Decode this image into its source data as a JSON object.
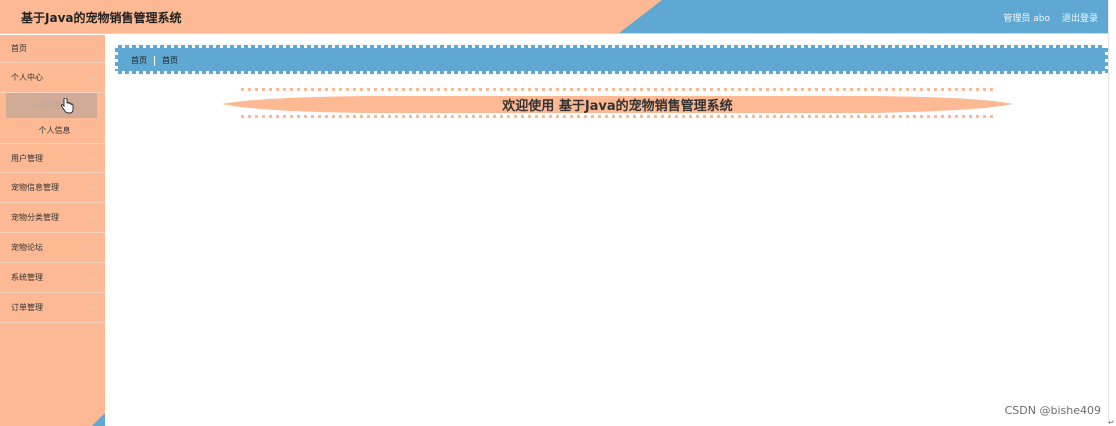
{
  "app": {
    "title": "基于Java的宠物销售管理系统"
  },
  "header": {
    "user_label": "管理员 abo",
    "logout_label": "退出登录",
    "colors": {
      "peach": "#fdb993",
      "blue": "#5ea8d3"
    }
  },
  "sidebar": {
    "items": [
      {
        "label": "首页",
        "expandable": false
      },
      {
        "label": "个人中心",
        "expandable": true,
        "children": [
          {
            "label": "修改密码",
            "state": "hovered"
          },
          {
            "label": "个人信息"
          }
        ]
      },
      {
        "label": "用户管理",
        "expandable": true
      },
      {
        "label": "宠物信息管理",
        "expandable": true
      },
      {
        "label": "宠物分类管理",
        "expandable": true
      },
      {
        "label": "宠物论坛",
        "expandable": true
      },
      {
        "label": "系统管理",
        "expandable": true
      },
      {
        "label": "订单管理",
        "expandable": true
      }
    ]
  },
  "breadcrumb": {
    "items": [
      "首页",
      "首页"
    ]
  },
  "main": {
    "welcome": "欢迎使用 基于Java的宠物销售管理系统"
  },
  "watermark": "CSDN @bishe409",
  "edge_mark": "↵"
}
